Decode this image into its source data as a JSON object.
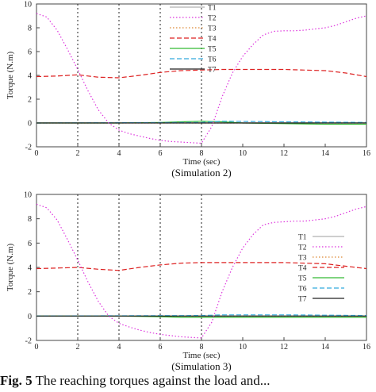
{
  "caption": {
    "figure_label": "Fig. 5",
    "text": "The reaching torques against the load and..."
  },
  "chart_data": [
    {
      "type": "line",
      "subtitle": "(Simulation 2)",
      "xlabel": "Time (sec)",
      "ylabel": "Torque (N.m)",
      "xlim": [
        0,
        16
      ],
      "ylim": [
        -2,
        10
      ],
      "xticks": [
        0,
        2,
        4,
        6,
        8,
        10,
        12,
        14,
        16
      ],
      "yticks": [
        -2,
        0,
        2,
        4,
        6,
        8,
        10
      ],
      "grid": "vertical dotted lines at t = 2, 4, 6, 8",
      "legend_position": "top-right",
      "series": [
        {
          "name": "T1",
          "color": "#b0b0b0",
          "style": "solid",
          "x": [
            0,
            16
          ],
          "y": [
            0.02,
            0.02
          ]
        },
        {
          "name": "T2",
          "color": "#dd33dd",
          "style": "dotted",
          "x": [
            0,
            0.5,
            1,
            1.5,
            2,
            2.5,
            3,
            3.5,
            4,
            4.5,
            5,
            5.5,
            6,
            6.5,
            7,
            7.5,
            8,
            8.5,
            9,
            9.5,
            10,
            10.5,
            11,
            11.5,
            12,
            12.5,
            13,
            13.5,
            14,
            14.5,
            15,
            15.5,
            16
          ],
          "y": [
            9.2,
            8.9,
            7.8,
            6.2,
            4.5,
            2.7,
            1.1,
            0.0,
            -0.6,
            -0.9,
            -1.1,
            -1.3,
            -1.45,
            -1.55,
            -1.6,
            -1.65,
            -1.7,
            -0.3,
            2.2,
            4.2,
            5.6,
            6.6,
            7.4,
            7.7,
            7.75,
            7.75,
            7.8,
            7.9,
            8.0,
            8.2,
            8.5,
            8.8,
            9.0
          ]
        },
        {
          "name": "T3",
          "color": "#dd8833",
          "style": "dotted",
          "x": [
            0,
            16
          ],
          "y": [
            0.0,
            0.0
          ]
        },
        {
          "name": "T4",
          "color": "#dd2222",
          "style": "dashed",
          "x": [
            0,
            1,
            2,
            3,
            4,
            5,
            6,
            7,
            8,
            9,
            10,
            11,
            12,
            13,
            14,
            15,
            16
          ],
          "y": [
            3.9,
            3.95,
            4.05,
            3.85,
            3.8,
            4.0,
            4.25,
            4.4,
            4.45,
            4.5,
            4.5,
            4.5,
            4.5,
            4.45,
            4.4,
            4.2,
            3.9
          ]
        },
        {
          "name": "T5",
          "color": "#33bb33",
          "style": "solid",
          "x": [
            0,
            2,
            4,
            6,
            7,
            8,
            9,
            10,
            12,
            14,
            16
          ],
          "y": [
            0.0,
            0.0,
            0.0,
            0.05,
            0.1,
            0.15,
            0.1,
            0.0,
            -0.05,
            -0.1,
            -0.1
          ]
        },
        {
          "name": "T6",
          "color": "#33aadd",
          "style": "dashed",
          "x": [
            0,
            8,
            9,
            12,
            16
          ],
          "y": [
            0.0,
            0.05,
            0.15,
            0.1,
            0.05
          ]
        },
        {
          "name": "T7",
          "color": "#222222",
          "style": "solid",
          "x": [
            0,
            16
          ],
          "y": [
            0.0,
            0.0
          ]
        }
      ]
    },
    {
      "type": "line",
      "subtitle": "(Simulation 3)",
      "xlabel": "Time (sec)",
      "ylabel": "Torque (N.m)",
      "xlim": [
        0,
        16
      ],
      "ylim": [
        -2,
        10
      ],
      "xticks": [
        0,
        2,
        4,
        6,
        8,
        10,
        12,
        14,
        16
      ],
      "yticks": [
        -2,
        0,
        2,
        4,
        6,
        8,
        10
      ],
      "grid": "vertical dotted lines at t = 2, 4, 6, 8",
      "legend_position": "right",
      "series": [
        {
          "name": "T1",
          "color": "#b0b0b0",
          "style": "solid",
          "x": [
            0,
            16
          ],
          "y": [
            0.02,
            0.02
          ]
        },
        {
          "name": "T2",
          "color": "#dd33dd",
          "style": "dotted",
          "x": [
            0,
            0.5,
            1,
            1.5,
            2,
            2.5,
            3,
            3.5,
            4,
            4.5,
            5,
            5.5,
            6,
            6.5,
            7,
            7.5,
            8,
            8.5,
            9,
            9.5,
            10,
            10.5,
            11,
            11.5,
            12,
            12.5,
            13,
            13.5,
            14,
            14.5,
            15,
            15.5,
            16
          ],
          "y": [
            9.2,
            8.9,
            7.9,
            6.3,
            4.6,
            2.8,
            1.2,
            0.0,
            -0.6,
            -0.9,
            -1.15,
            -1.35,
            -1.5,
            -1.6,
            -1.7,
            -1.75,
            -1.8,
            -0.5,
            2.0,
            4.0,
            5.6,
            6.7,
            7.5,
            7.7,
            7.75,
            7.8,
            7.8,
            7.9,
            8.0,
            8.2,
            8.5,
            8.8,
            9.0
          ]
        },
        {
          "name": "T3",
          "color": "#dd8833",
          "style": "dotted",
          "x": [
            0,
            16
          ],
          "y": [
            0.0,
            0.0
          ]
        },
        {
          "name": "T4",
          "color": "#dd2222",
          "style": "dashed",
          "x": [
            0,
            1,
            2,
            3,
            4,
            5,
            6,
            7,
            8,
            9,
            10,
            11,
            12,
            13,
            14,
            15,
            16
          ],
          "y": [
            3.9,
            3.95,
            4.0,
            3.85,
            3.75,
            4.0,
            4.2,
            4.35,
            4.4,
            4.4,
            4.4,
            4.4,
            4.4,
            4.35,
            4.3,
            4.1,
            3.9
          ]
        },
        {
          "name": "T5",
          "color": "#33bb33",
          "style": "solid",
          "x": [
            0,
            2,
            4,
            6,
            7,
            8,
            9,
            10,
            12,
            14,
            16
          ],
          "y": [
            0.0,
            0.0,
            0.0,
            -0.05,
            -0.1,
            -0.1,
            -0.1,
            -0.1,
            -0.1,
            -0.1,
            -0.1
          ]
        },
        {
          "name": "T6",
          "color": "#33aadd",
          "style": "dashed",
          "x": [
            0,
            8,
            9,
            12,
            16
          ],
          "y": [
            0.0,
            0.05,
            0.1,
            0.1,
            0.05
          ]
        },
        {
          "name": "T7",
          "color": "#222222",
          "style": "solid",
          "x": [
            0,
            16
          ],
          "y": [
            0.0,
            0.0
          ]
        }
      ]
    }
  ]
}
